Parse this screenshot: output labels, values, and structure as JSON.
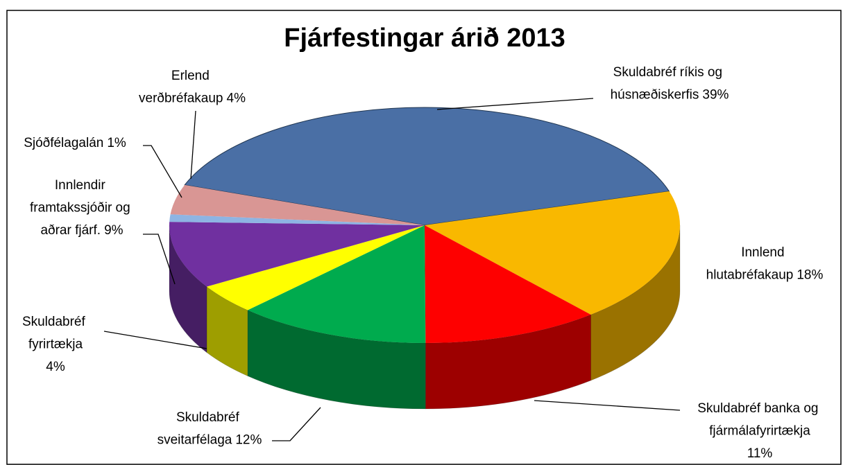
{
  "chart_data": {
    "type": "pie3d",
    "title": "Fjárfestingar árið 2013",
    "categories": [
      "Skuldabréf ríkis og húsnæðiskerfis",
      "Innlend hlutabréfakaup",
      "Skuldabréf banka og fjármálafyrirtækja",
      "Skuldabréf sveitarfélaga",
      "Skuldabréf fyrirtækja",
      "Innlendir framtakssjóðir og aðrar fjárf.",
      "Sjóðfélagalán",
      "Erlend verðbréfakaup"
    ],
    "values": [
      39,
      18,
      11,
      12,
      4,
      9,
      1,
      4
    ],
    "value_labels": [
      "39%",
      "18%",
      "11%",
      "12%",
      "4%",
      "9%",
      "1%",
      "4%"
    ],
    "colors": [
      "#4a6fa5",
      "#f9b800",
      "#fe0000",
      "#00ab4e",
      "#ffff00",
      "#7030a0",
      "#8eb4e3",
      "#d99694"
    ]
  }
}
